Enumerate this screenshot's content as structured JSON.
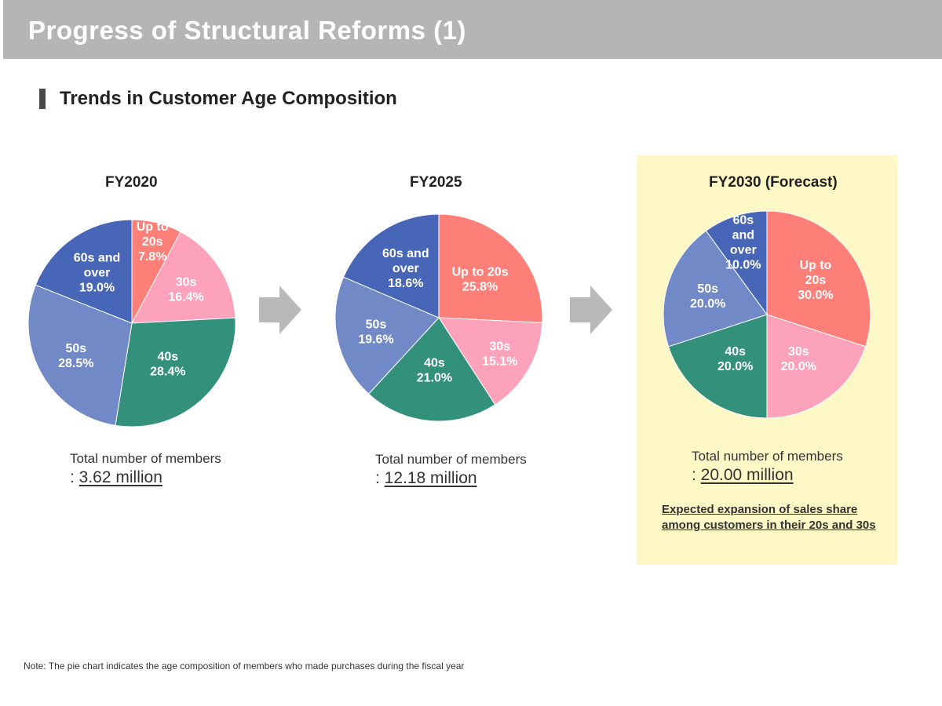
{
  "page": {
    "title": "Progress of Structural Reforms (1)",
    "section_title": "Trends in Customer Age Composition",
    "note": "Note: The pie chart indicates the age composition of members who made purchases during the fiscal year"
  },
  "colors": {
    "up_to_20s": "#fe7f78",
    "30s": "#fca3bb",
    "40s": "#33917b",
    "50s": "#7289c8",
    "60s_and_over": "#4866b8",
    "forecast_panel": "#fdf8c5",
    "header": "#b5b5b5",
    "arrow": "#b9b9b9"
  },
  "chart_data": [
    {
      "type": "pie",
      "title": "FY2020",
      "slices": [
        {
          "name": "Up to 20s",
          "value": 7.8,
          "label_lines": [
            "Up to",
            "20s",
            "7.8%"
          ],
          "color": "#fe7f78"
        },
        {
          "name": "30s",
          "value": 16.4,
          "label_lines": [
            "30s",
            "16.4%"
          ],
          "color": "#fca3bb"
        },
        {
          "name": "40s",
          "value": 28.4,
          "label_lines": [
            "40s",
            "28.4%"
          ],
          "color": "#33917b"
        },
        {
          "name": "50s",
          "value": 28.5,
          "label_lines": [
            "50s",
            "28.5%"
          ],
          "color": "#7289c8"
        },
        {
          "name": "60s and over",
          "value": 19.0,
          "label_lines": [
            "60s and",
            "over",
            "19.0%"
          ],
          "color": "#4866b8"
        }
      ],
      "members_label": "Total number of members",
      "members_prefix": ": ",
      "members_value": "3.62 million"
    },
    {
      "type": "pie",
      "title": "FY2025",
      "slices": [
        {
          "name": "Up to 20s",
          "value": 25.8,
          "label_lines": [
            "Up to 20s",
            "25.8%"
          ],
          "color": "#fe7f78"
        },
        {
          "name": "30s",
          "value": 15.1,
          "label_lines": [
            "30s",
            "15.1%"
          ],
          "color": "#fca3bb"
        },
        {
          "name": "40s",
          "value": 21.0,
          "label_lines": [
            "40s",
            "21.0%"
          ],
          "color": "#33917b"
        },
        {
          "name": "50s",
          "value": 19.6,
          "label_lines": [
            "50s",
            "19.6%"
          ],
          "color": "#7289c8"
        },
        {
          "name": "60s and over",
          "value": 18.6,
          "label_lines": [
            "60s and",
            "over",
            "18.6%"
          ],
          "color": "#4866b8"
        }
      ],
      "members_label": "Total number of members",
      "members_prefix": ": ",
      "members_value": "12.18 million"
    },
    {
      "type": "pie",
      "title": "FY2030 (Forecast)",
      "slices": [
        {
          "name": "Up to 20s",
          "value": 30.0,
          "label_lines": [
            "Up to",
            "20s",
            "30.0%"
          ],
          "color": "#fe7f78"
        },
        {
          "name": "30s",
          "value": 20.0,
          "label_lines": [
            "30s",
            "20.0%"
          ],
          "color": "#fca3bb"
        },
        {
          "name": "40s",
          "value": 20.0,
          "label_lines": [
            "40s",
            "20.0%"
          ],
          "color": "#33917b"
        },
        {
          "name": "50s",
          "value": 20.0,
          "label_lines": [
            "50s",
            "20.0%"
          ],
          "color": "#7289c8"
        },
        {
          "name": "60s and over",
          "value": 10.0,
          "label_lines": [
            "60s",
            "and",
            "over",
            "10.0%"
          ],
          "color": "#4866b8"
        }
      ],
      "members_label": "Total number of members",
      "members_prefix": ": ",
      "members_value": "20.00 million",
      "expectation": "Expected expansion of sales share among customers in their 20s and 30s"
    }
  ]
}
